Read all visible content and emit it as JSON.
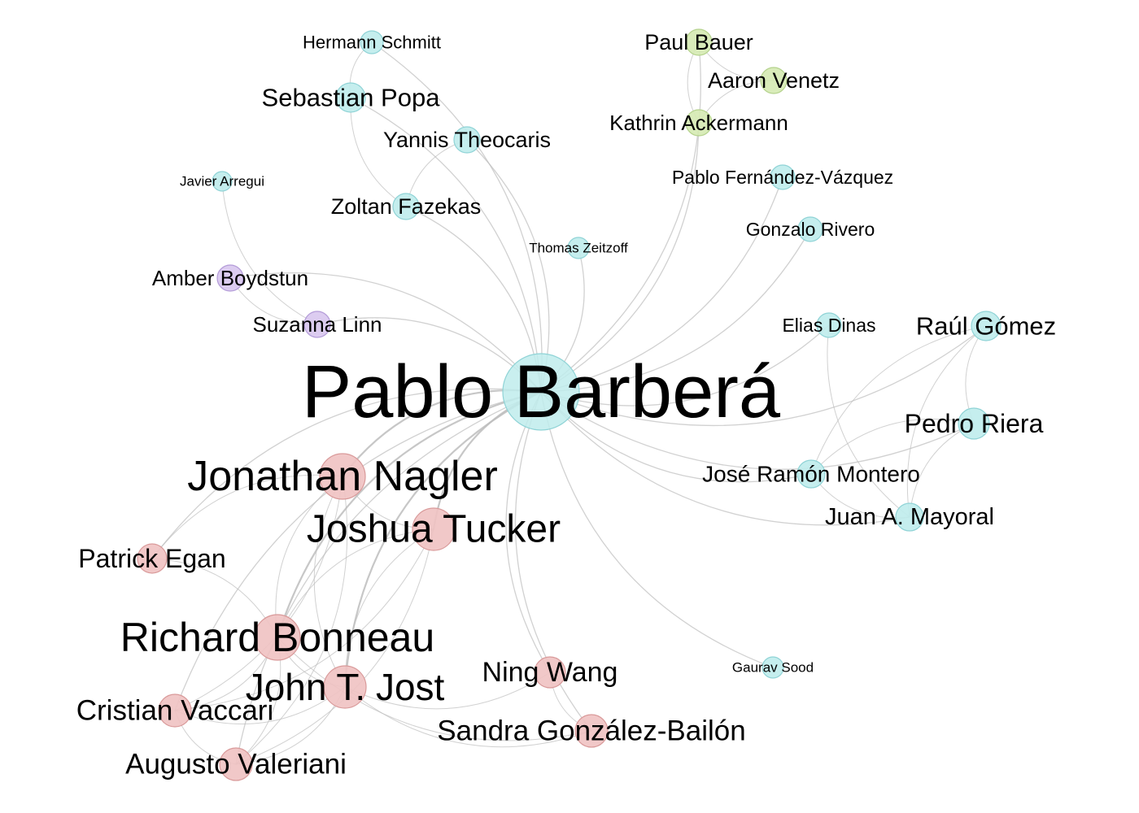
{
  "palette": {
    "edge": "#bdbdbd",
    "clusters": {
      "teal": {
        "fill": "#bfecec",
        "stroke": "#8fd3d6"
      },
      "green": {
        "fill": "#d5eab2",
        "stroke": "#b4d28c"
      },
      "purple": {
        "fill": "#d8c6ee",
        "stroke": "#b39bd8"
      },
      "red": {
        "fill": "#f0c2c2",
        "stroke": "#d99a9a"
      }
    }
  },
  "nodes": [
    {
      "id": "pablo-barbera",
      "label": "Pablo Barberá",
      "cluster": "teal"
    },
    {
      "id": "hermann-schmitt",
      "label": "Hermann Schmitt",
      "cluster": "teal"
    },
    {
      "id": "sebastian-popa",
      "label": "Sebastian Popa",
      "cluster": "teal"
    },
    {
      "id": "yannis-theocaris",
      "label": "Yannis Theocaris",
      "cluster": "teal"
    },
    {
      "id": "zoltan-fazekas",
      "label": "Zoltan Fazekas",
      "cluster": "teal"
    },
    {
      "id": "javier-arregui",
      "label": "Javier Arregui",
      "cluster": "teal"
    },
    {
      "id": "thomas-zeitzoff",
      "label": "Thomas Zeitzoff",
      "cluster": "teal"
    },
    {
      "id": "pablo-fernandez",
      "label": "Pablo Fernández-Vázquez",
      "cluster": "teal"
    },
    {
      "id": "gonzalo-rivero",
      "label": "Gonzalo Rivero",
      "cluster": "teal"
    },
    {
      "id": "elias-dinas",
      "label": "Elias Dinas",
      "cluster": "teal"
    },
    {
      "id": "raul-gomez",
      "label": "Raúl Gómez",
      "cluster": "teal"
    },
    {
      "id": "pedro-riera",
      "label": "Pedro Riera",
      "cluster": "teal"
    },
    {
      "id": "jose-ramon-montero",
      "label": "José Ramón Montero",
      "cluster": "teal"
    },
    {
      "id": "juan-mayoral",
      "label": "Juan A. Mayoral",
      "cluster": "teal"
    },
    {
      "id": "gaurav-sood",
      "label": "Gaurav Sood",
      "cluster": "teal"
    },
    {
      "id": "paul-bauer",
      "label": "Paul Bauer",
      "cluster": "green"
    },
    {
      "id": "aaron-venetz",
      "label": "Aaron Venetz",
      "cluster": "green"
    },
    {
      "id": "kathrin-ackermann",
      "label": "Kathrin Ackermann",
      "cluster": "green"
    },
    {
      "id": "amber-boydstun",
      "label": "Amber Boydstun",
      "cluster": "purple"
    },
    {
      "id": "suzanna-linn",
      "label": "Suzanna Linn",
      "cluster": "purple"
    },
    {
      "id": "jonathan-nagler",
      "label": "Jonathan Nagler",
      "cluster": "red"
    },
    {
      "id": "joshua-tucker",
      "label": "Joshua Tucker",
      "cluster": "red"
    },
    {
      "id": "patrick-egan",
      "label": "Patrick Egan",
      "cluster": "red"
    },
    {
      "id": "richard-bonneau",
      "label": "Richard Bonneau",
      "cluster": "red"
    },
    {
      "id": "john-jost",
      "label": "John T. Jost",
      "cluster": "red"
    },
    {
      "id": "ning-wang",
      "label": "Ning Wang",
      "cluster": "red"
    },
    {
      "id": "cristian-vaccari",
      "label": "Cristian Vaccari",
      "cluster": "red"
    },
    {
      "id": "sandra-gonzalez",
      "label": "Sandra González-Bailón",
      "cluster": "red"
    },
    {
      "id": "augusto-valeriani",
      "label": "Augusto Valeriani",
      "cluster": "red"
    }
  ],
  "edges": [
    {
      "source": "pablo-barbera",
      "target": "hermann-schmitt"
    },
    {
      "source": "pablo-barbera",
      "target": "sebastian-popa"
    },
    {
      "source": "pablo-barbera",
      "target": "yannis-theocaris"
    },
    {
      "source": "pablo-barbera",
      "target": "zoltan-fazekas"
    },
    {
      "source": "pablo-barbera",
      "target": "thomas-zeitzoff"
    },
    {
      "source": "pablo-barbera",
      "target": "paul-bauer"
    },
    {
      "source": "pablo-barbera",
      "target": "kathrin-ackermann"
    },
    {
      "source": "pablo-barbera",
      "target": "pablo-fernandez"
    },
    {
      "source": "pablo-barbera",
      "target": "gonzalo-rivero"
    },
    {
      "source": "pablo-barbera",
      "target": "amber-boydstun"
    },
    {
      "source": "pablo-barbera",
      "target": "suzanna-linn"
    },
    {
      "source": "pablo-barbera",
      "target": "elias-dinas"
    },
    {
      "source": "pablo-barbera",
      "target": "raul-gomez"
    },
    {
      "source": "pablo-barbera",
      "target": "pedro-riera"
    },
    {
      "source": "pablo-barbera",
      "target": "jose-ramon-montero"
    },
    {
      "source": "pablo-barbera",
      "target": "juan-mayoral"
    },
    {
      "source": "pablo-barbera",
      "target": "gaurav-sood"
    },
    {
      "source": "pablo-barbera",
      "target": "jonathan-nagler"
    },
    {
      "source": "pablo-barbera",
      "target": "joshua-tucker"
    },
    {
      "source": "pablo-barbera",
      "target": "patrick-egan"
    },
    {
      "source": "pablo-barbera",
      "target": "richard-bonneau"
    },
    {
      "source": "pablo-barbera",
      "target": "john-jost"
    },
    {
      "source": "pablo-barbera",
      "target": "ning-wang"
    },
    {
      "source": "pablo-barbera",
      "target": "cristian-vaccari"
    },
    {
      "source": "pablo-barbera",
      "target": "sandra-gonzalez"
    },
    {
      "source": "pablo-barbera",
      "target": "augusto-valeriani"
    },
    {
      "source": "hermann-schmitt",
      "target": "sebastian-popa"
    },
    {
      "source": "sebastian-popa",
      "target": "zoltan-fazekas"
    },
    {
      "source": "yannis-theocaris",
      "target": "zoltan-fazekas"
    },
    {
      "source": "paul-bauer",
      "target": "aaron-venetz"
    },
    {
      "source": "aaron-venetz",
      "target": "kathrin-ackermann"
    },
    {
      "source": "paul-bauer",
      "target": "kathrin-ackermann"
    },
    {
      "source": "javier-arregui",
      "target": "suzanna-linn"
    },
    {
      "source": "amber-boydstun",
      "target": "suzanna-linn"
    },
    {
      "source": "raul-gomez",
      "target": "pedro-riera"
    },
    {
      "source": "raul-gomez",
      "target": "juan-mayoral"
    },
    {
      "source": "raul-gomez",
      "target": "jose-ramon-montero"
    },
    {
      "source": "pedro-riera",
      "target": "juan-mayoral"
    },
    {
      "source": "pedro-riera",
      "target": "jose-ramon-montero"
    },
    {
      "source": "jose-ramon-montero",
      "target": "juan-mayoral"
    },
    {
      "source": "elias-dinas",
      "target": "juan-mayoral"
    },
    {
      "source": "jonathan-nagler",
      "target": "joshua-tucker"
    },
    {
      "source": "jonathan-nagler",
      "target": "richard-bonneau"
    },
    {
      "source": "jonathan-nagler",
      "target": "john-jost"
    },
    {
      "source": "jonathan-nagler",
      "target": "patrick-egan"
    },
    {
      "source": "joshua-tucker",
      "target": "richard-bonneau"
    },
    {
      "source": "joshua-tucker",
      "target": "john-jost"
    },
    {
      "source": "richard-bonneau",
      "target": "john-jost"
    },
    {
      "source": "richard-bonneau",
      "target": "patrick-egan"
    },
    {
      "source": "john-jost",
      "target": "ning-wang"
    },
    {
      "source": "john-jost",
      "target": "sandra-gonzalez"
    },
    {
      "source": "richard-bonneau",
      "target": "sandra-gonzalez"
    },
    {
      "source": "ning-wang",
      "target": "sandra-gonzalez"
    },
    {
      "source": "cristian-vaccari",
      "target": "augusto-valeriani"
    },
    {
      "source": "cristian-vaccari",
      "target": "john-jost"
    },
    {
      "source": "augusto-valeriani",
      "target": "john-jost"
    },
    {
      "source": "cristian-vaccari",
      "target": "richard-bonneau"
    },
    {
      "source": "augusto-valeriani",
      "target": "richard-bonneau"
    },
    {
      "source": "cristian-vaccari",
      "target": "joshua-tucker"
    },
    {
      "source": "augusto-valeriani",
      "target": "joshua-tucker"
    },
    {
      "source": "cristian-vaccari",
      "target": "jonathan-nagler"
    },
    {
      "source": "augusto-valeriani",
      "target": "jonathan-nagler"
    }
  ]
}
